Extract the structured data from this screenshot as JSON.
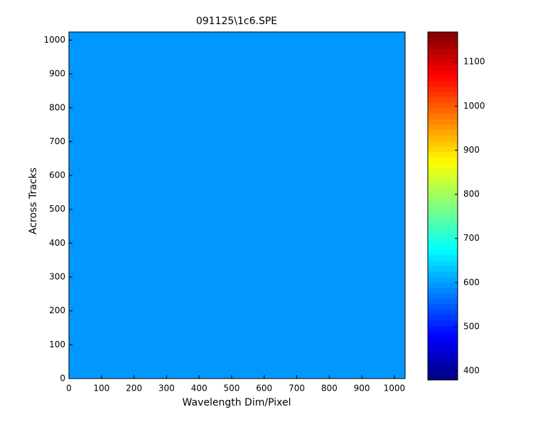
{
  "chart_data": {
    "type": "image",
    "title": "091125\\1c6.SPE",
    "x_label": "Wavelength Dim/Pixel",
    "y_label": "Across Tracks",
    "value": 595,
    "colormap": "jet",
    "xlim": [
      0,
      1033
    ],
    "xticks": [
      0,
      100,
      200,
      300,
      400,
      500,
      600,
      700,
      800,
      900,
      1000
    ],
    "ylim": [
      0,
      1024
    ],
    "yticks": [
      0,
      100,
      200,
      300,
      400,
      500,
      600,
      700,
      800,
      900,
      1000
    ],
    "clim": [
      379,
      1168
    ],
    "cticks": [
      400,
      500,
      600,
      700,
      800,
      900,
      1000,
      1100
    ]
  }
}
